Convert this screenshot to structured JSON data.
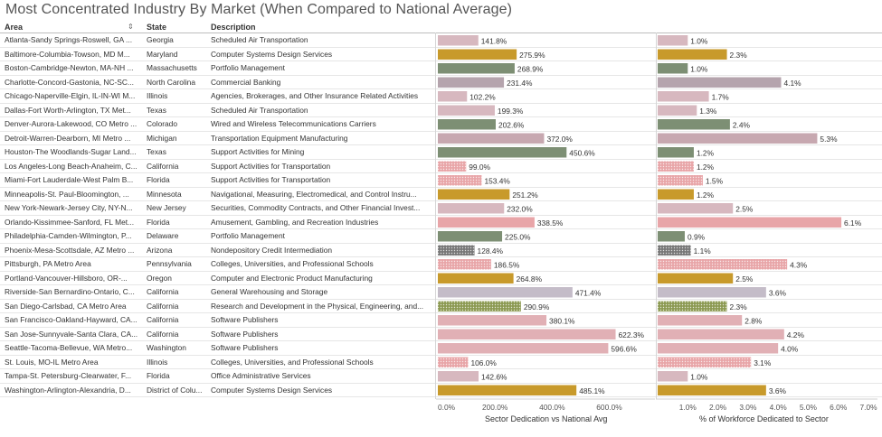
{
  "title": "Most Concentrated Industry By Market (When Compared to National Average)",
  "headers": {
    "area": "Area",
    "state": "State",
    "description": "Description"
  },
  "icons": {
    "sort": "sort-descending-icon"
  },
  "colors": {
    "air_transportation": "#d7b8bf",
    "computer_design": "#c89a2b",
    "portfolio": "#7d8f74",
    "banking": "#b5a4ad",
    "insurance": "#d7b8bf",
    "electrical": "#7d8f74",
    "transportation_equipment": "#c7a8b0",
    "mining": "#7d8f74",
    "support_transport": "#e8a5a8",
    "navigational": "#c89a2b",
    "securities": "#d7b8bf",
    "amusement": "#e8a5a8",
    "credit": "#777777",
    "colleges": "#e8a5a8",
    "computer_electronic": "#c89a2b",
    "warehousing": "#c4bcc8",
    "research": "#8c9a52",
    "software": "#e1b0b5",
    "office_admin": "#c89a2b"
  },
  "chart_data": {
    "type": "bar",
    "categories": [
      "Atlanta-Sandy Springs-Roswell, GA ...",
      "Baltimore-Columbia-Towson, MD M...",
      "Boston-Cambridge-Newton, MA-NH ...",
      "Charlotte-Concord-Gastonia, NC-SC...",
      "Chicago-Naperville-Elgin, IL-IN-WI M...",
      "Dallas-Fort Worth-Arlington, TX Met...",
      "Denver-Aurora-Lakewood, CO Metro ...",
      "Detroit-Warren-Dearborn, MI Metro ...",
      "Houston-The Woodlands-Sugar Land...",
      "Los Angeles-Long Beach-Anaheim, C...",
      "Miami-Fort Lauderdale-West Palm B...",
      "Minneapolis-St. Paul-Bloomington, ...",
      "New York-Newark-Jersey City, NY-N...",
      "Orlando-Kissimmee-Sanford, FL Met...",
      "Philadelphia-Camden-Wilmington, P...",
      "Phoenix-Mesa-Scottsdale, AZ Metro ...",
      "Pittsburgh, PA Metro Area",
      "Portland-Vancouver-Hillsboro, OR-...",
      "Riverside-San Bernardino-Ontario, C...",
      "San Diego-Carlsbad, CA Metro Area",
      "San Francisco-Oakland-Hayward, CA...",
      "San Jose-Sunnyvale-Santa Clara, CA...",
      "Seattle-Tacoma-Bellevue, WA Metro...",
      "St. Louis, MO-IL Metro Area",
      "Tampa-St. Petersburg-Clearwater, F...",
      "Washington-Arlington-Alexandria, D..."
    ],
    "states": [
      "Georgia",
      "Maryland",
      "Massachusetts",
      "North Carolina",
      "Illinois",
      "Texas",
      "Colorado",
      "Michigan",
      "Texas",
      "California",
      "Florida",
      "Minnesota",
      "New Jersey",
      "Florida",
      "Delaware",
      "Arizona",
      "Pennsylvania",
      "Oregon",
      "California",
      "California",
      "California",
      "California",
      "Washington",
      "Illinois",
      "Florida",
      "District of Colu..."
    ],
    "descriptions": [
      "Scheduled Air Transportation",
      "Computer Systems Design Services",
      "Portfolio Management",
      "Commercial Banking",
      "Agencies, Brokerages, and Other Insurance Related Activities",
      "Scheduled Air Transportation",
      "Wired and Wireless Telecommunications Carriers",
      "Transportation Equipment Manufacturing",
      "Support Activities for Mining",
      "Support Activities for Transportation",
      "Support Activities for Transportation",
      "Navigational, Measuring, Electromedical, and Control Instru...",
      "Securities, Commodity Contracts, and Other Financial Invest...",
      "Amusement, Gambling, and Recreation Industries",
      "Portfolio Management",
      "Nondepository Credit Intermediation",
      "Colleges, Universities, and Professional Schools",
      "Computer and Electronic Product Manufacturing",
      "General Warehousing and Storage",
      "Research and Development in the Physical, Engineering, and...",
      "Software Publishers",
      "Software Publishers",
      "Software Publishers",
      "Colleges, Universities, and Professional Schools",
      "Office Administrative Services",
      "Computer Systems Design Services"
    ],
    "bar_colors": [
      "#d7b8bf",
      "#c89a2b",
      "#7d8f74",
      "#b5a4ad",
      "#d7b8bf",
      "#d7b8bf",
      "#7d8f74",
      "#c7a8b0",
      "#7d8f74",
      "#e8a5a8",
      "#e8a5a8",
      "#c89a2b",
      "#d7b8bf",
      "#e8a5a8",
      "#7d8f74",
      "#777777",
      "#e8a5a8",
      "#c89a2b",
      "#c4bcc8",
      "#8c9a52",
      "#e1b0b5",
      "#e1b0b5",
      "#e1b0b5",
      "#e8a5a8",
      "#d7b8bf",
      "#c89a2b"
    ],
    "patterned": [
      false,
      false,
      false,
      false,
      false,
      false,
      false,
      false,
      false,
      true,
      true,
      false,
      false,
      false,
      false,
      true,
      true,
      false,
      false,
      true,
      false,
      false,
      false,
      true,
      false,
      false
    ],
    "series": [
      {
        "name": "Sector Dedication vs National Avg",
        "values": [
          141.8,
          275.9,
          268.9,
          231.4,
          102.2,
          199.3,
          202.6,
          372.0,
          450.6,
          99.0,
          153.4,
          251.2,
          232.0,
          338.5,
          225.0,
          128.4,
          186.5,
          264.8,
          471.4,
          290.9,
          380.1,
          622.3,
          596.6,
          106.0,
          142.6,
          485.1
        ],
        "labels": [
          "141.8%",
          "275.9%",
          "268.9%",
          "231.4%",
          "102.2%",
          "199.3%",
          "202.6%",
          "372.0%",
          "450.6%",
          "99.0%",
          "153.4%",
          "251.2%",
          "232.0%",
          "338.5%",
          "225.0%",
          "128.4%",
          "186.5%",
          "264.8%",
          "471.4%",
          "290.9%",
          "380.1%",
          "622.3%",
          "596.6%",
          "106.0%",
          "142.6%",
          "485.1%"
        ],
        "axis_title": "Sector Dedication vs National Avg",
        "ticks": [
          "0.0%",
          "200.0%",
          "400.0%",
          "600.0%"
        ],
        "tick_values": [
          0,
          200,
          400,
          600
        ],
        "xlim": [
          0,
          760
        ]
      },
      {
        "name": "% of Workforce Dedicated to Sector",
        "values": [
          1.0,
          2.3,
          1.0,
          4.1,
          1.7,
          1.3,
          2.4,
          5.3,
          1.2,
          1.2,
          1.5,
          1.2,
          2.5,
          6.1,
          0.9,
          1.1,
          4.3,
          2.5,
          3.6,
          2.3,
          2.8,
          4.2,
          4.0,
          3.1,
          1.0,
          3.6
        ],
        "labels": [
          "1.0%",
          "2.3%",
          "1.0%",
          "4.1%",
          "1.7%",
          "1.3%",
          "2.4%",
          "5.3%",
          "1.2%",
          "1.2%",
          "1.5%",
          "1.2%",
          "2.5%",
          "6.1%",
          "0.9%",
          "1.1%",
          "4.3%",
          "2.5%",
          "3.6%",
          "2.3%",
          "2.8%",
          "4.2%",
          "4.0%",
          "3.1%",
          "1.0%",
          "3.6%"
        ],
        "axis_title": "% of Workforce Dedicated to Sector",
        "ticks": [
          "1.0%",
          "2.0%",
          "3.0%",
          "4.0%",
          "5.0%",
          "6.0%",
          "7.0%"
        ],
        "tick_values": [
          1,
          2,
          3,
          4,
          5,
          6,
          7
        ],
        "xlim": [
          0,
          7.3
        ]
      }
    ],
    "grid": false,
    "legend": "none"
  }
}
